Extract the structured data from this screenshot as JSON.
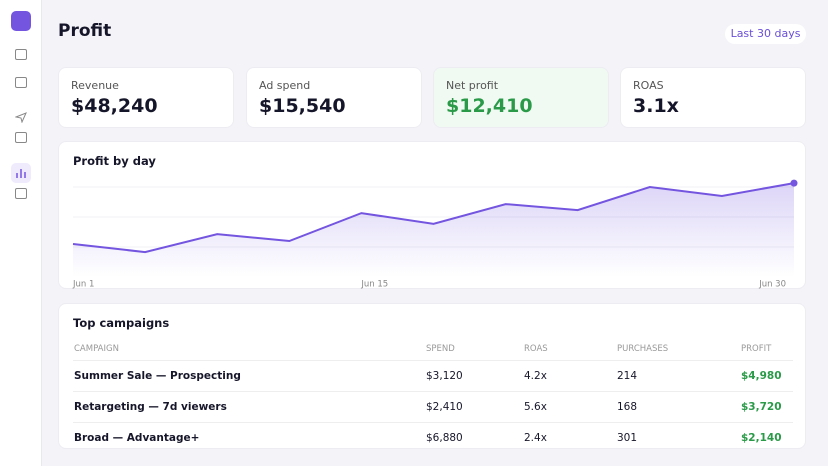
{
  "header": {
    "title": "Profit",
    "range_button": "Last 30 days"
  },
  "kpis": [
    {
      "label": "Revenue",
      "value": "$48,240"
    },
    {
      "label": "Ad spend",
      "value": "$15,540"
    },
    {
      "label": "Net profit",
      "value": "$12,410"
    },
    {
      "label": "ROAS",
      "value": "3.1x"
    }
  ],
  "chart_data": {
    "type": "line",
    "title": "Profit by day",
    "categories": [
      "Jun 1",
      null,
      null,
      null,
      "Jun 15",
      null,
      null,
      null,
      null,
      null,
      "Jun 30"
    ],
    "series": [
      {
        "name": "Profit",
        "color": "#7355e0",
        "values": [
          1.1,
          0.83,
          1.43,
          1.2,
          2.13,
          1.77,
          2.43,
          2.23,
          3.0,
          2.7,
          3.13
        ]
      }
    ],
    "ylim": [
      0,
      3.5
    ],
    "yticks": [
      1,
      2,
      3
    ],
    "grid": true
  },
  "table": {
    "title": "Top campaigns",
    "columns": [
      "CAMPAIGN",
      "SPEND",
      "ROAS",
      "PURCHASES",
      "PROFIT"
    ],
    "rows": [
      [
        "Summer Sale — Prospecting",
        "$3,120",
        "4.2x",
        "214",
        "$4,980"
      ],
      [
        "Retargeting — 7d viewers",
        "$2,410",
        "5.6x",
        "168",
        "$3,720"
      ],
      [
        "Broad — Advantage+",
        "$6,880",
        "2.4x",
        "301",
        "$2,140"
      ]
    ]
  }
}
